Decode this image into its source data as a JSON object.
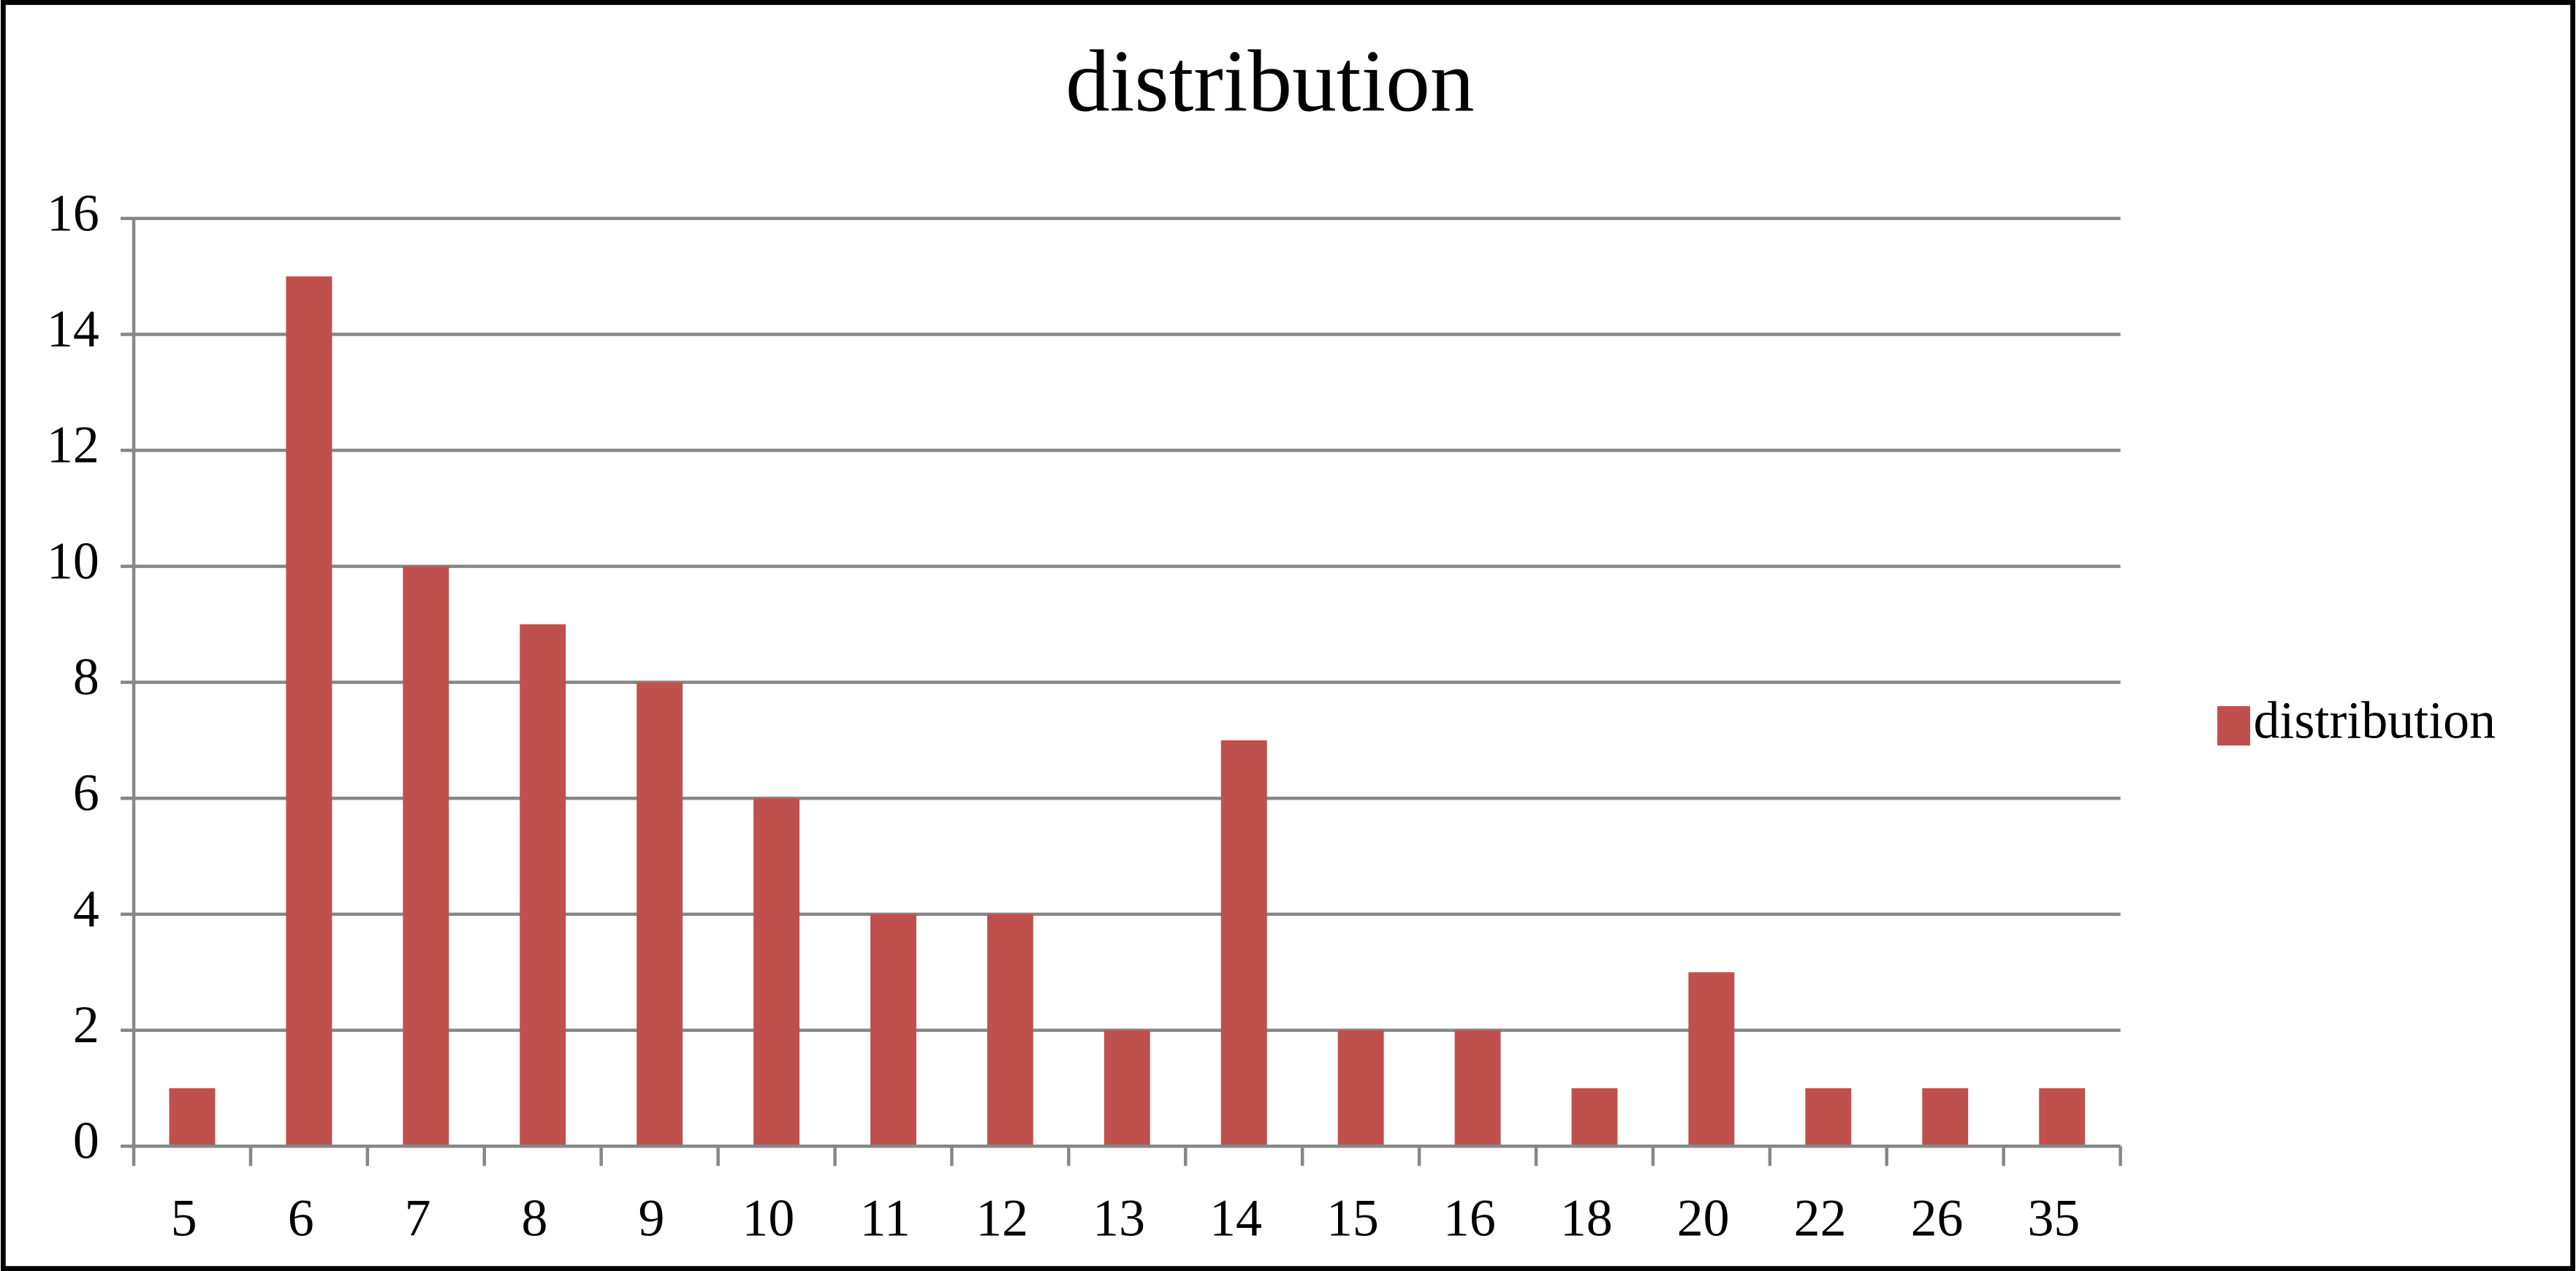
{
  "chart_data": {
    "type": "bar",
    "title": "distribution",
    "categories": [
      "5",
      "6",
      "7",
      "8",
      "9",
      "10",
      "11",
      "12",
      "13",
      "14",
      "15",
      "16",
      "18",
      "20",
      "22",
      "26",
      "35"
    ],
    "series": [
      {
        "name": "distribution",
        "color": "#c0504d",
        "values": [
          1,
          15,
          10,
          9,
          8,
          6,
          4,
          4,
          2,
          7,
          2,
          2,
          1,
          3,
          1,
          1,
          1
        ]
      }
    ],
    "ylim": [
      0,
      16
    ],
    "yticks": [
      0,
      2,
      4,
      6,
      8,
      10,
      12,
      14,
      16
    ],
    "grid": true,
    "legend": "right"
  }
}
